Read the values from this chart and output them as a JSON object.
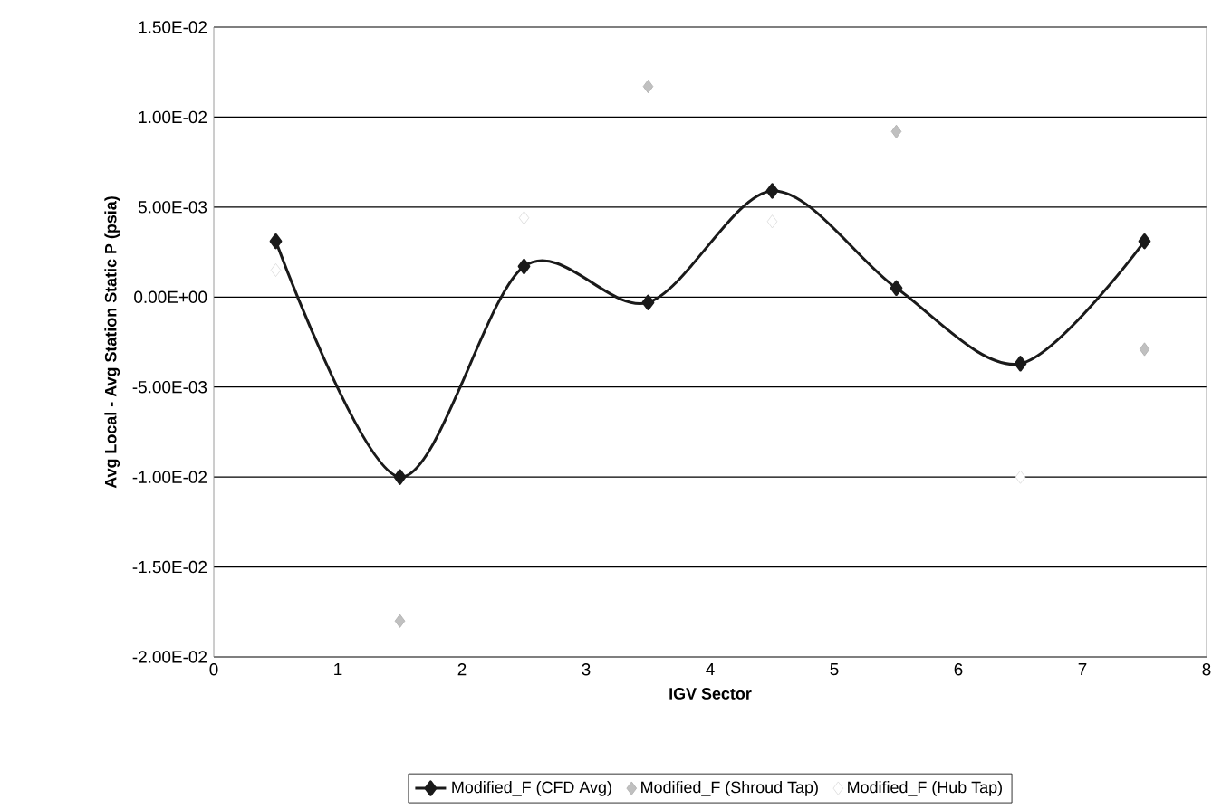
{
  "chart_data": {
    "type": "line",
    "xlabel": "IGV Sector",
    "ylabel": "Avg Local - Avg Station Static P (psia)",
    "x": [
      0.5,
      1.5,
      2.5,
      3.5,
      4.5,
      5.5,
      6.5,
      7.5
    ],
    "series": [
      {
        "name": "Modified_F (CFD Avg)",
        "color": "#1a1a1a",
        "marker": "diamond",
        "values": [
          0.0031,
          -0.01,
          0.0017,
          -0.0003,
          0.0059,
          0.0005,
          -0.0037,
          0.0031
        ]
      },
      {
        "name": "Modified_F (Shroud Tap)",
        "type": "scatter",
        "color": "#c0c0c0",
        "marker": "diamond",
        "values": [
          null,
          -0.018,
          null,
          0.0117,
          null,
          0.0092,
          null,
          -0.0029
        ]
      },
      {
        "name": "Modified_F (Hub Tap)",
        "type": "scatter",
        "color": "#ffffff",
        "marker": "diamond",
        "values": [
          0.0015,
          null,
          0.0044,
          null,
          0.0042,
          null,
          -0.01,
          null
        ]
      }
    ],
    "xlim": [
      0,
      8
    ],
    "xticks": [
      0,
      1,
      2,
      3,
      4,
      5,
      6,
      7,
      8
    ],
    "ylim": [
      -0.02,
      0.015
    ],
    "yticks": [
      {
        "value": -0.02,
        "label": "-2.00E-02"
      },
      {
        "value": -0.015,
        "label": "-1.50E-02"
      },
      {
        "value": -0.01,
        "label": "-1.00E-02"
      },
      {
        "value": -0.005,
        "label": "-5.00E-03"
      },
      {
        "value": 0,
        "label": "0.00E+00"
      },
      {
        "value": 0.005,
        "label": "5.00E-03"
      },
      {
        "value": 0.01,
        "label": "1.00E-02"
      },
      {
        "value": 0.015,
        "label": "1.50E-02"
      }
    ],
    "grid": "y",
    "legend": "bottom",
    "line_style": "solid"
  }
}
